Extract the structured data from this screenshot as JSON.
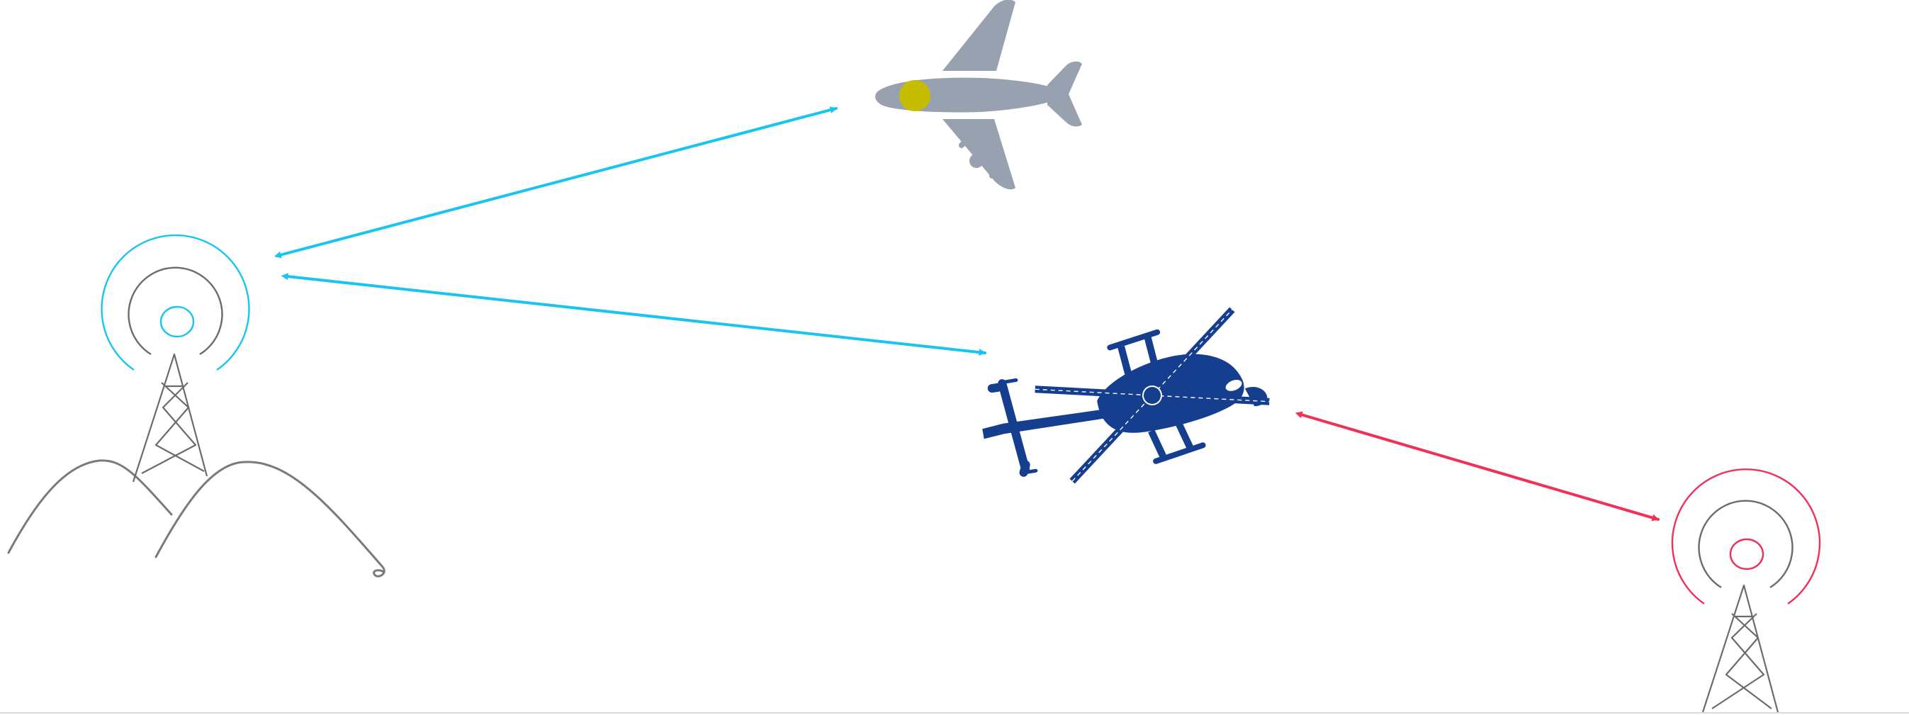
{
  "scene": {
    "objects": [
      {
        "id": "airplane",
        "kind": "aircraft",
        "icon": "airplane-icon",
        "color": "#97a1af",
        "accent_color": "#c7bd00"
      },
      {
        "id": "helicopter",
        "kind": "aircraft",
        "icon": "helicopter-icon",
        "color": "#153f8e"
      },
      {
        "id": "tower-left",
        "kind": "radio-tower",
        "icon": "radio-tower-icon",
        "signal_color": "#1ac4f1",
        "frame_color": "#6b6b6b"
      },
      {
        "id": "tower-right",
        "kind": "radio-tower",
        "icon": "radio-tower-icon",
        "signal_color": "#ef3158",
        "frame_color": "#6b6b6b"
      },
      {
        "id": "hills",
        "kind": "terrain",
        "icon": "hills-icon",
        "color": "#7a7a7a"
      }
    ],
    "links": [
      {
        "from": "tower-left",
        "to": "airplane",
        "direction": "bidirectional",
        "color": "#1ac4f1"
      },
      {
        "from": "tower-left",
        "to": "helicopter",
        "direction": "bidirectional",
        "color": "#1ac4f1"
      },
      {
        "from": "helicopter",
        "to": "tower-right",
        "direction": "bidirectional",
        "color": "#ef3158"
      }
    ]
  }
}
